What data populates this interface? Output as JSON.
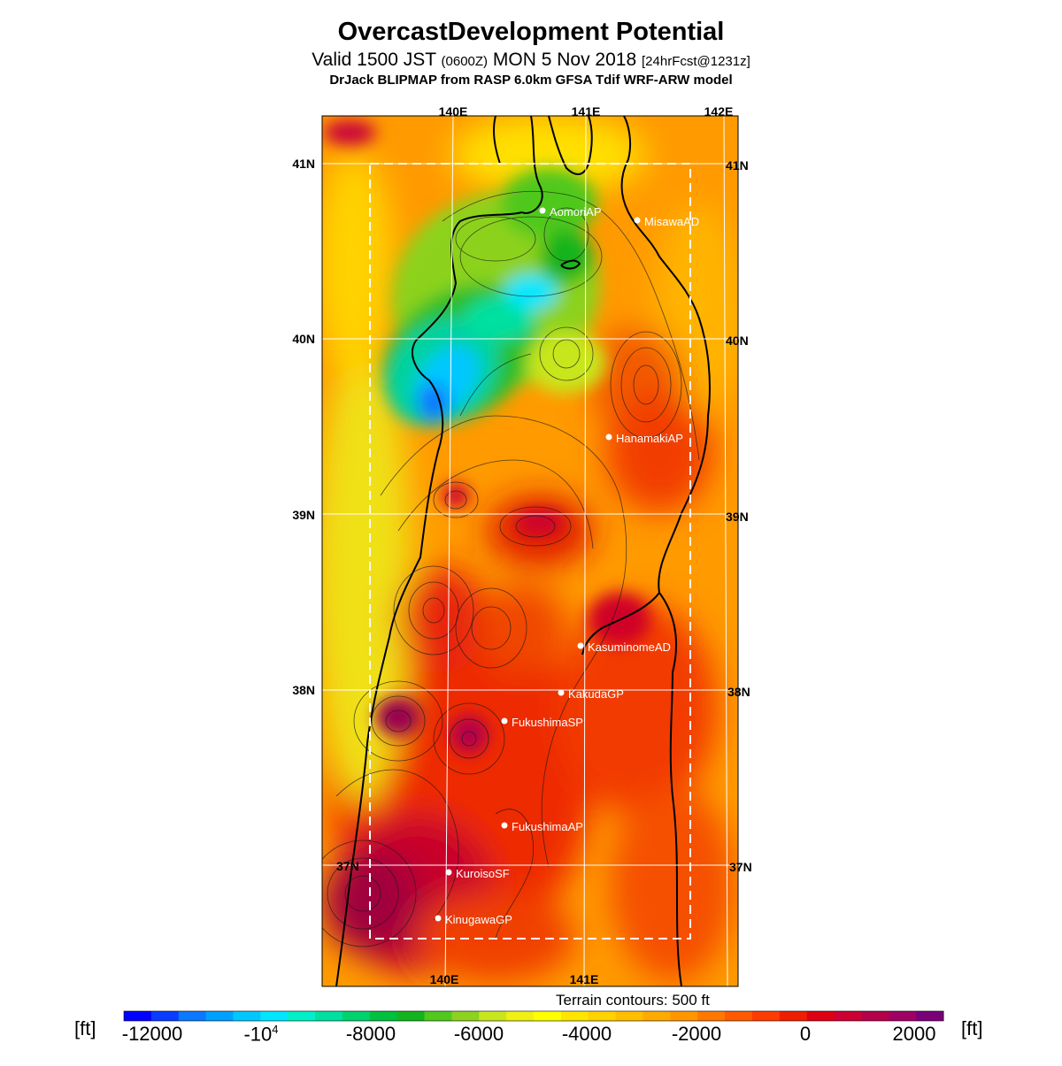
{
  "title": "OvercastDevelopment Potential",
  "subtitle": {
    "valid": "Valid 1500 JST",
    "utc": "(0600Z)",
    "date": "MON 5 Nov 2018",
    "forecast": "[24hrFcst@1231z]"
  },
  "model_line": "DrJack BLIPMAP from RASP 6.0km GFSA Tdif WRF-ARW model",
  "map": {
    "lon_labels_top": [
      "140E",
      "141E",
      "142E"
    ],
    "lon_labels_bottom": [
      "140E",
      "141E"
    ],
    "lat_labels": [
      "41N",
      "40N",
      "39N",
      "38N",
      "37N"
    ],
    "sites": [
      {
        "name": "AomoriAP"
      },
      {
        "name": "MisawaAD"
      },
      {
        "name": "HanamakiAP"
      },
      {
        "name": "KasuminomeAD"
      },
      {
        "name": "KakudaGP"
      },
      {
        "name": "FukushimaSP"
      },
      {
        "name": "FukushimaAP"
      },
      {
        "name": "KuroisoSF"
      },
      {
        "name": "KinugawaGP"
      }
    ],
    "terrain_note": "Terrain contours: 500 ft"
  },
  "colorbar": {
    "unit": "[ft]",
    "labels": [
      {
        "text": "-12000"
      },
      {
        "text": "-10",
        "sup": "4"
      },
      {
        "text": "-8000"
      },
      {
        "text": "-6000"
      },
      {
        "text": "-4000"
      },
      {
        "text": "-2000"
      },
      {
        "text": "0"
      },
      {
        "text": "2000"
      }
    ],
    "colors": [
      "#0000ff",
      "#0a3cff",
      "#0a78ff",
      "#00a0ff",
      "#00c8ff",
      "#00e6ff",
      "#00f0c8",
      "#00e0a0",
      "#00d26e",
      "#00c040",
      "#14b41e",
      "#50c81e",
      "#8cd21e",
      "#c8e61e",
      "#f0f014",
      "#ffff00",
      "#ffe600",
      "#ffd200",
      "#ffbe00",
      "#ffaa00",
      "#ff9600",
      "#ff7800",
      "#ff5a00",
      "#ff3c00",
      "#f01e00",
      "#e00014",
      "#cc0032",
      "#b4004b",
      "#a00064",
      "#7a0078"
    ]
  }
}
